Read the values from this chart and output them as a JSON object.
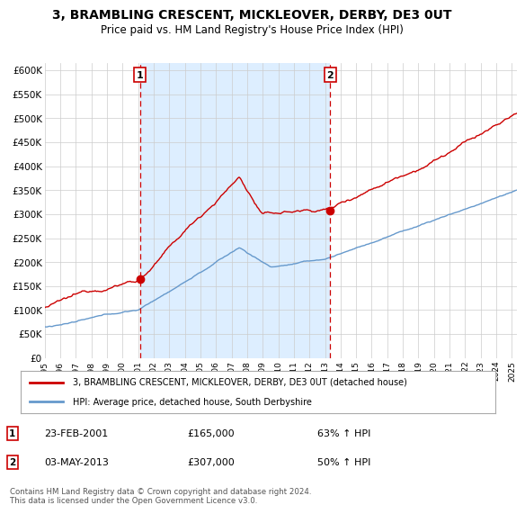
{
  "title": "3, BRAMBLING CRESCENT, MICKLEOVER, DERBY, DE3 0UT",
  "subtitle": "Price paid vs. HM Land Registry's House Price Index (HPI)",
  "title_fontsize": 10,
  "subtitle_fontsize": 8.5,
  "ylim": [
    0,
    615000
  ],
  "xlim_start": 1995.0,
  "xlim_end": 2025.3,
  "yticks": [
    0,
    50000,
    100000,
    150000,
    200000,
    250000,
    300000,
    350000,
    400000,
    450000,
    500000,
    550000,
    600000
  ],
  "ytick_labels": [
    "£0",
    "£50K",
    "£100K",
    "£150K",
    "£200K",
    "£250K",
    "£300K",
    "£350K",
    "£400K",
    "£450K",
    "£500K",
    "£550K",
    "£600K"
  ],
  "xtick_years": [
    1995,
    1996,
    1997,
    1998,
    1999,
    2000,
    2001,
    2002,
    2003,
    2004,
    2005,
    2006,
    2007,
    2008,
    2009,
    2010,
    2011,
    2012,
    2013,
    2014,
    2015,
    2016,
    2017,
    2018,
    2019,
    2020,
    2021,
    2022,
    2023,
    2024,
    2025
  ],
  "line_red_color": "#cc0000",
  "line_blue_color": "#6699cc",
  "shade_color": "#ddeeff",
  "vline_color": "#cc0000",
  "marker1_x": 2001.12,
  "marker1_y": 165000,
  "marker2_x": 2013.33,
  "marker2_y": 307000,
  "legend_entries": [
    "3, BRAMBLING CRESCENT, MICKLEOVER, DERBY, DE3 0UT (detached house)",
    "HPI: Average price, detached house, South Derbyshire"
  ],
  "table_data": [
    {
      "num": "1",
      "date": "23-FEB-2001",
      "price": "£165,000",
      "hpi": "63% ↑ HPI"
    },
    {
      "num": "2",
      "date": "03-MAY-2013",
      "price": "£307,000",
      "hpi": "50% ↑ HPI"
    }
  ],
  "footnote": "Contains HM Land Registry data © Crown copyright and database right 2024.\nThis data is licensed under the Open Government Licence v3.0.",
  "bg_color": "#ffffff",
  "grid_color": "#cccccc"
}
